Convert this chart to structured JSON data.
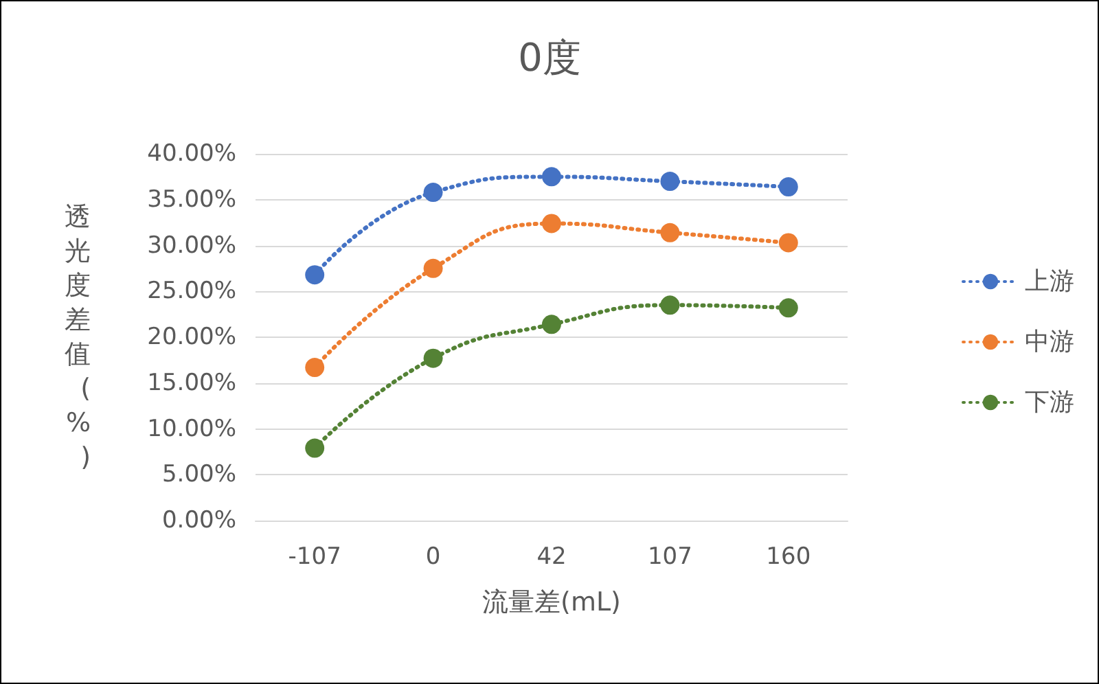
{
  "chart_data": {
    "type": "line",
    "title": "0度",
    "xlabel": "流量差(mL)",
    "ylabel": "透光度差值(%)",
    "categories": [
      "-107",
      "0",
      "42",
      "107",
      "160"
    ],
    "series": [
      {
        "name": "上游",
        "color": "#4472c4",
        "values": [
          26.8,
          35.8,
          37.5,
          37.0,
          36.4
        ]
      },
      {
        "name": "中游",
        "color": "#ed7d31",
        "values": [
          16.7,
          27.5,
          32.4,
          31.4,
          30.3
        ]
      },
      {
        "name": "下游",
        "color": "#548235",
        "values": [
          7.9,
          17.7,
          21.4,
          23.5,
          23.2
        ]
      }
    ],
    "ylim": [
      0,
      40
    ],
    "yticks": [
      {
        "value": 0,
        "label": "0.00%"
      },
      {
        "value": 5,
        "label": "5.00%"
      },
      {
        "value": 10,
        "label": "10.00%"
      },
      {
        "value": 15,
        "label": "15.00%"
      },
      {
        "value": 20,
        "label": "20.00%"
      },
      {
        "value": 25,
        "label": "25.00%"
      },
      {
        "value": 30,
        "label": "30.00%"
      },
      {
        "value": 35,
        "label": "35.00%"
      },
      {
        "value": 40,
        "label": "40.00%"
      }
    ],
    "grid": "y",
    "legend": "right",
    "marker": "circle",
    "line_style": "dotted"
  }
}
